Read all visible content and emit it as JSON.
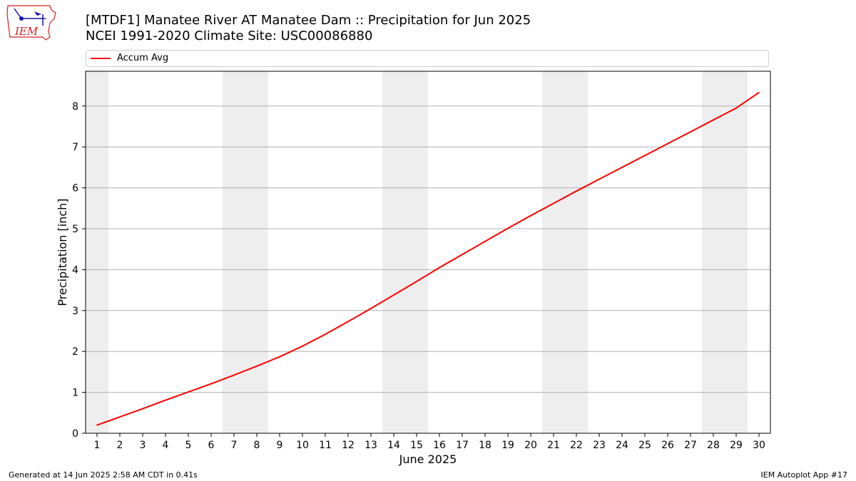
{
  "logo": {
    "text": "IEM"
  },
  "title": {
    "line1": "[MTDF1] Manatee River  AT Manatee Dam :: Precipitation for Jun 2025",
    "line2": "NCEI 1991-2020 Climate Site: USC00086880"
  },
  "footer": {
    "left": "Generated at 14 Jun 2025 2:58 AM CDT in 0.41s",
    "right": "IEM Autoplot App #17"
  },
  "colors": {
    "line": "#ff0000",
    "weekend_band": "#eeeeee",
    "grid": "#b0b0b0"
  },
  "chart_data": {
    "type": "line",
    "xlabel": "June 2025",
    "ylabel": "Precipitation [inch]",
    "x": [
      1,
      2,
      3,
      4,
      5,
      6,
      7,
      8,
      9,
      10,
      11,
      12,
      13,
      14,
      15,
      16,
      17,
      18,
      19,
      20,
      21,
      22,
      23,
      24,
      25,
      26,
      27,
      28,
      29,
      30
    ],
    "x_tick_labels": [
      "1",
      "2",
      "3",
      "4",
      "5",
      "6",
      "7",
      "8",
      "9",
      "10",
      "11",
      "12",
      "13",
      "14",
      "15",
      "16",
      "17",
      "18",
      "19",
      "20",
      "21",
      "22",
      "23",
      "24",
      "25",
      "26",
      "27",
      "28",
      "29",
      "30"
    ],
    "ylim": [
      0,
      8.85
    ],
    "y_ticks": [
      0,
      1,
      2,
      3,
      4,
      5,
      6,
      7,
      8
    ],
    "grid": "horizontal",
    "legend": "top",
    "weekend_days": [
      1,
      7,
      8,
      14,
      15,
      21,
      22,
      28,
      29
    ],
    "series": [
      {
        "name": "Accum Avg",
        "values": [
          0.2,
          0.4,
          0.6,
          0.81,
          1.01,
          1.21,
          1.42,
          1.64,
          1.87,
          2.13,
          2.42,
          2.73,
          3.05,
          3.38,
          3.71,
          4.05,
          4.37,
          4.69,
          5.01,
          5.32,
          5.62,
          5.92,
          6.21,
          6.5,
          6.79,
          7.08,
          7.37,
          7.66,
          7.95,
          8.33
        ]
      }
    ]
  }
}
